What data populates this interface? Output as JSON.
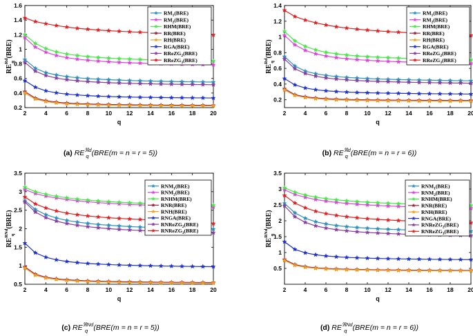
{
  "figure": {
    "captions": [
      "(a) RE_q^{ℜd}(BRE(m = n = r = 5))",
      "(b) RE_q^{ℜd}(BRE(m = n = r = 6))",
      "(c) RE_q^{ℜNd}(BRE(m = n = r = 5))",
      "(d) RE_q^{ℜNd}(BRE(m = n = r = 6))"
    ]
  },
  "chart_data": [
    {
      "type": "line",
      "panel": "a",
      "xlabel": "q",
      "ylabel": "RE_q^{Rd}(BRE)",
      "xlim": [
        2,
        20
      ],
      "ylim": [
        0.2,
        1.6
      ],
      "xticks": [
        2,
        4,
        6,
        8,
        10,
        12,
        14,
        16,
        18,
        20
      ],
      "yticks": [
        0.2,
        0.4,
        0.6,
        0.8,
        1.0,
        1.2,
        1.4,
        1.6
      ],
      "yticklabels": [
        "0.2",
        "0.4",
        "0.6",
        "0.8",
        "1",
        "1.2",
        "1.4",
        "1.6"
      ],
      "grid": false,
      "legend_position": "top-right",
      "x": [
        2,
        3,
        4,
        5,
        6,
        7,
        8,
        9,
        10,
        11,
        12,
        13,
        14,
        15,
        16,
        17,
        18,
        19,
        20
      ],
      "series": [
        {
          "name": "RM_1(BRE)",
          "color": "#2a8fbd",
          "marker": "star",
          "values": [
            0.86,
            0.74,
            0.68,
            0.648,
            0.625,
            0.61,
            0.598,
            0.59,
            0.583,
            0.577,
            0.572,
            0.568,
            0.564,
            0.561,
            0.558,
            0.556,
            0.554,
            0.552,
            0.55
          ]
        },
        {
          "name": "RM_2(BRE)",
          "color": "#e040e0",
          "marker": "star",
          "values": [
            1.16,
            1.03,
            0.96,
            0.915,
            0.885,
            0.865,
            0.85,
            0.838,
            0.829,
            0.821,
            0.815,
            0.81,
            0.805,
            0.801,
            0.798,
            0.795,
            0.792,
            0.79,
            0.788
          ]
        },
        {
          "name": "RHM(BRE)",
          "color": "#44e844",
          "marker": "star",
          "values": [
            1.2,
            1.08,
            1.01,
            0.965,
            0.935,
            0.915,
            0.9,
            0.888,
            0.879,
            0.872,
            0.866,
            0.861,
            0.856,
            0.852,
            0.849,
            0.846,
            0.843,
            0.841,
            0.839
          ]
        },
        {
          "name": "RR(BRE)",
          "color": "#a0203a",
          "marker": "star",
          "values": [
            0.42,
            0.33,
            0.295,
            0.275,
            0.263,
            0.255,
            0.25,
            0.246,
            0.243,
            0.241,
            0.239,
            0.237,
            0.236,
            0.235,
            0.234,
            0.233,
            0.232,
            0.232,
            0.231
          ]
        },
        {
          "name": "RH(BRE)",
          "color": "#f0a020",
          "marker": "star",
          "values": [
            0.4,
            0.318,
            0.283,
            0.264,
            0.252,
            0.245,
            0.24,
            0.236,
            0.233,
            0.231,
            0.229,
            0.228,
            0.227,
            0.226,
            0.225,
            0.224,
            0.224,
            0.223,
            0.223
          ]
        },
        {
          "name": "RGA(BRE)",
          "color": "#1c2fd0",
          "marker": "star",
          "values": [
            0.57,
            0.48,
            0.43,
            0.403,
            0.385,
            0.373,
            0.364,
            0.357,
            0.352,
            0.348,
            0.345,
            0.342,
            0.34,
            0.338,
            0.336,
            0.335,
            0.334,
            0.333,
            0.332
          ]
        },
        {
          "name": "RReZG_2(BRE)",
          "color": "#8a3aa0",
          "marker": "star",
          "values": [
            0.82,
            0.7,
            0.64,
            0.605,
            0.583,
            0.568,
            0.557,
            0.549,
            0.542,
            0.537,
            0.533,
            0.529,
            0.526,
            0.523,
            0.521,
            0.519,
            0.517,
            0.516,
            0.514
          ]
        },
        {
          "name": "RReZG_3(BRE)",
          "color": "#e02020",
          "marker": "star",
          "values": [
            1.43,
            1.38,
            1.35,
            1.325,
            1.305,
            1.288,
            1.275,
            1.264,
            1.255,
            1.247,
            1.24,
            1.234,
            1.229,
            1.224,
            1.22,
            1.216,
            1.213,
            1.21,
            1.198
          ]
        }
      ]
    },
    {
      "type": "line",
      "panel": "b",
      "xlabel": "q",
      "ylabel": "RE_q^{Rd}(BRE)",
      "xlim": [
        2,
        20
      ],
      "ylim": [
        0.1,
        1.4
      ],
      "xticks": [
        2,
        4,
        6,
        8,
        10,
        12,
        14,
        16,
        18,
        20
      ],
      "yticks": [
        0.2,
        0.4,
        0.6,
        0.8,
        1.0,
        1.2,
        1.4
      ],
      "yticklabels": [
        "0.2",
        "0.4",
        "0.6",
        "0.8",
        "1",
        "1.2",
        "1.4"
      ],
      "grid": false,
      "legend_position": "top-right",
      "x": [
        2,
        3,
        4,
        5,
        6,
        7,
        8,
        9,
        10,
        11,
        12,
        13,
        14,
        15,
        16,
        17,
        18,
        19,
        20
      ],
      "series": [
        {
          "name": "RM_1(BRE)",
          "color": "#2a8fbd",
          "marker": "star",
          "values": [
            0.75,
            0.63,
            0.565,
            0.532,
            0.51,
            0.496,
            0.485,
            0.477,
            0.47,
            0.465,
            0.461,
            0.457,
            0.454,
            0.451,
            0.449,
            0.447,
            0.445,
            0.443,
            0.442
          ]
        },
        {
          "name": "RM_2(BRE)",
          "color": "#e040e0",
          "marker": "star",
          "values": [
            1.02,
            0.9,
            0.83,
            0.785,
            0.757,
            0.737,
            0.722,
            0.711,
            0.702,
            0.695,
            0.689,
            0.684,
            0.68,
            0.676,
            0.673,
            0.67,
            0.668,
            0.666,
            0.664
          ]
        },
        {
          "name": "RHM(BRE)",
          "color": "#44e844",
          "marker": "star",
          "values": [
            1.07,
            0.95,
            0.88,
            0.835,
            0.805,
            0.785,
            0.77,
            0.758,
            0.749,
            0.742,
            0.736,
            0.731,
            0.726,
            0.722,
            0.719,
            0.716,
            0.713,
            0.711,
            0.709
          ]
        },
        {
          "name": "RR(BRE)",
          "color": "#a0203a",
          "marker": "star",
          "values": [
            0.34,
            0.265,
            0.238,
            0.223,
            0.214,
            0.208,
            0.204,
            0.201,
            0.199,
            0.197,
            0.196,
            0.195,
            0.194,
            0.193,
            0.192,
            0.192,
            0.191,
            0.191,
            0.19
          ]
        },
        {
          "name": "RH(BRE)",
          "color": "#f0a020",
          "marker": "star",
          "values": [
            0.325,
            0.255,
            0.228,
            0.214,
            0.205,
            0.199,
            0.195,
            0.192,
            0.19,
            0.188,
            0.187,
            0.186,
            0.185,
            0.184,
            0.183,
            0.183,
            0.182,
            0.182,
            0.181
          ]
        },
        {
          "name": "RGA(BRE)",
          "color": "#1c2fd0",
          "marker": "star",
          "values": [
            0.47,
            0.39,
            0.35,
            0.328,
            0.314,
            0.305,
            0.298,
            0.293,
            0.289,
            0.286,
            0.284,
            0.282,
            0.28,
            0.278,
            0.277,
            0.276,
            0.275,
            0.274,
            0.273
          ]
        },
        {
          "name": "RReZG_2(BRE)",
          "color": "#8a3aa0",
          "marker": "star",
          "values": [
            0.72,
            0.595,
            0.535,
            0.5,
            0.478,
            0.464,
            0.453,
            0.445,
            0.439,
            0.434,
            0.43,
            0.426,
            0.423,
            0.42,
            0.418,
            0.416,
            0.414,
            0.413,
            0.411
          ]
        },
        {
          "name": "RReZG_3(BRE)",
          "color": "#e02020",
          "marker": "star",
          "values": [
            1.34,
            1.26,
            1.215,
            1.18,
            1.152,
            1.13,
            1.113,
            1.099,
            1.087,
            1.077,
            1.068,
            1.061,
            1.054,
            1.048,
            1.043,
            1.038,
            1.034,
            1.03,
            1.02
          ]
        }
      ]
    },
    {
      "type": "line",
      "panel": "c",
      "xlabel": "q",
      "ylabel": "RE_q^{RNd}(BRE)",
      "xlim": [
        2,
        20
      ],
      "ylim": [
        0.5,
        3.5
      ],
      "xticks": [
        2,
        4,
        6,
        8,
        10,
        12,
        14,
        16,
        18,
        20
      ],
      "yticks": [
        0.5,
        1.0,
        1.5,
        2.0,
        2.5,
        3.0,
        3.5
      ],
      "yticklabels": [
        "0.5",
        "1",
        "1.5",
        "2",
        "2.5",
        "3",
        "3.5"
      ],
      "grid": false,
      "legend_position": "top-right",
      "x": [
        2,
        3,
        4,
        5,
        6,
        7,
        8,
        9,
        10,
        11,
        12,
        13,
        14,
        15,
        16,
        17,
        18,
        19,
        20
      ],
      "series": [
        {
          "name": "RNM_1(BRE)",
          "color": "#2a8fbd",
          "marker": "star",
          "values": [
            2.76,
            2.52,
            2.38,
            2.29,
            2.225,
            2.18,
            2.145,
            2.115,
            2.093,
            2.074,
            2.058,
            2.045,
            2.034,
            2.024,
            2.016,
            2.008,
            2.002,
            1.996,
            1.99
          ]
        },
        {
          "name": "RNM_2(BRE)",
          "color": "#e040e0",
          "marker": "star",
          "values": [
            3.06,
            2.95,
            2.88,
            2.83,
            2.79,
            2.755,
            2.728,
            2.705,
            2.686,
            2.67,
            2.656,
            2.644,
            2.633,
            2.624,
            2.616,
            2.608,
            2.601,
            2.595,
            2.59
          ]
        },
        {
          "name": "RNHM(BRE)",
          "color": "#44e844",
          "marker": "star",
          "values": [
            3.12,
            3.0,
            2.93,
            2.875,
            2.835,
            2.8,
            2.773,
            2.75,
            2.731,
            2.715,
            2.701,
            2.689,
            2.678,
            2.668,
            2.66,
            2.652,
            2.645,
            2.639,
            2.633
          ]
        },
        {
          "name": "RNR(BRE)",
          "color": "#a0203a",
          "marker": "star",
          "values": [
            0.97,
            0.77,
            0.69,
            0.648,
            0.622,
            0.605,
            0.592,
            0.583,
            0.576,
            0.57,
            0.565,
            0.561,
            0.558,
            0.555,
            0.553,
            0.551,
            0.549,
            0.547,
            0.546
          ]
        },
        {
          "name": "RNH(BRE)",
          "color": "#f0a020",
          "marker": "star",
          "values": [
            0.94,
            0.745,
            0.668,
            0.628,
            0.603,
            0.586,
            0.574,
            0.565,
            0.558,
            0.552,
            0.548,
            0.544,
            0.541,
            0.538,
            0.536,
            0.534,
            0.532,
            0.531,
            0.53
          ]
        },
        {
          "name": "RNGA(BRE)",
          "color": "#1c2fd0",
          "marker": "star",
          "values": [
            1.61,
            1.35,
            1.23,
            1.16,
            1.115,
            1.085,
            1.062,
            1.045,
            1.032,
            1.021,
            1.012,
            1.005,
            0.999,
            0.993,
            0.989,
            0.985,
            0.981,
            0.978,
            0.975
          ]
        },
        {
          "name": "RNReZG_2(BRE)",
          "color": "#8a3aa0",
          "marker": "star",
          "values": [
            2.72,
            2.45,
            2.3,
            2.205,
            2.14,
            2.092,
            2.055,
            2.026,
            2.002,
            1.982,
            1.966,
            1.952,
            1.94,
            1.93,
            1.921,
            1.913,
            1.906,
            1.9,
            1.894
          ]
        },
        {
          "name": "RNReZG_3(BRE)",
          "color": "#e02020",
          "marker": "star",
          "values": [
            2.86,
            2.67,
            2.56,
            2.48,
            2.42,
            2.378,
            2.345,
            2.318,
            2.296,
            2.278,
            2.263,
            2.25,
            2.239,
            2.229,
            2.22,
            2.213,
            2.206,
            2.2,
            2.14
          ]
        }
      ]
    },
    {
      "type": "line",
      "panel": "d",
      "xlabel": "q",
      "ylabel": "RE_q^{RNd}(BRE)",
      "xlim": [
        2,
        20
      ],
      "ylim": [
        0,
        3.5
      ],
      "xticks": [
        2,
        4,
        6,
        8,
        10,
        12,
        14,
        16,
        18,
        20
      ],
      "yticks": [
        0.5,
        1.0,
        1.5,
        2.0,
        2.5,
        3.0,
        3.5
      ],
      "yticklabels": [
        "0.5",
        "1",
        "1.5",
        "2",
        "2.5",
        "3",
        "3.5"
      ],
      "grid": false,
      "legend_position": "top-right",
      "x": [
        2,
        3,
        4,
        5,
        6,
        7,
        8,
        9,
        10,
        11,
        12,
        13,
        14,
        15,
        16,
        17,
        18,
        19,
        20
      ],
      "series": [
        {
          "name": "RNM_1(BRE)",
          "color": "#2a8fbd",
          "marker": "star",
          "values": [
            2.55,
            2.25,
            2.08,
            1.97,
            1.9,
            1.85,
            1.815,
            1.788,
            1.766,
            1.748,
            1.734,
            1.722,
            1.712,
            1.703,
            1.696,
            1.69,
            1.684,
            1.679,
            1.675
          ]
        },
        {
          "name": "RNM_2(BRE)",
          "color": "#e040e0",
          "marker": "star",
          "values": [
            2.98,
            2.83,
            2.74,
            2.67,
            2.62,
            2.58,
            2.548,
            2.522,
            2.5,
            2.482,
            2.466,
            2.453,
            2.441,
            2.431,
            2.422,
            2.414,
            2.407,
            2.401,
            2.395
          ]
        },
        {
          "name": "RNHM(BRE)",
          "color": "#44e844",
          "marker": "star",
          "values": [
            3.04,
            2.9,
            2.81,
            2.745,
            2.697,
            2.66,
            2.63,
            2.605,
            2.585,
            2.568,
            2.553,
            2.54,
            2.529,
            2.519,
            2.51,
            2.502,
            2.495,
            2.489,
            2.483
          ]
        },
        {
          "name": "RNR(BRE)",
          "color": "#a0203a",
          "marker": "star",
          "values": [
            0.78,
            0.62,
            0.555,
            0.52,
            0.498,
            0.484,
            0.474,
            0.466,
            0.46,
            0.455,
            0.451,
            0.448,
            0.445,
            0.443,
            0.441,
            0.439,
            0.437,
            0.436,
            0.435
          ]
        },
        {
          "name": "RNH(BRE)",
          "color": "#f0a020",
          "marker": "star",
          "values": [
            0.75,
            0.597,
            0.535,
            0.502,
            0.481,
            0.467,
            0.457,
            0.45,
            0.444,
            0.439,
            0.436,
            0.433,
            0.43,
            0.428,
            0.426,
            0.424,
            0.423,
            0.422,
            0.421
          ]
        },
        {
          "name": "RNGA(BRE)",
          "color": "#1c2fd0",
          "marker": "star",
          "values": [
            1.34,
            1.1,
            0.99,
            0.93,
            0.892,
            0.866,
            0.847,
            0.833,
            0.822,
            0.813,
            0.806,
            0.8,
            0.795,
            0.791,
            0.787,
            0.784,
            0.781,
            0.779,
            0.777
          ]
        },
        {
          "name": "RNReZG_2(BRE)",
          "color": "#8a3aa0",
          "marker": "star",
          "values": [
            2.47,
            2.13,
            1.95,
            1.84,
            1.77,
            1.72,
            1.683,
            1.655,
            1.632,
            1.614,
            1.599,
            1.586,
            1.575,
            1.566,
            1.558,
            1.551,
            1.545,
            1.54,
            1.535
          ]
        },
        {
          "name": "RNReZG_3(BRE)",
          "color": "#e02020",
          "marker": "star",
          "values": [
            2.8,
            2.56,
            2.41,
            2.3,
            2.225,
            2.17,
            2.128,
            2.094,
            2.066,
            2.043,
            2.024,
            2.008,
            1.994,
            1.982,
            1.971,
            1.962,
            1.954,
            1.947,
            1.94
          ]
        }
      ]
    }
  ]
}
